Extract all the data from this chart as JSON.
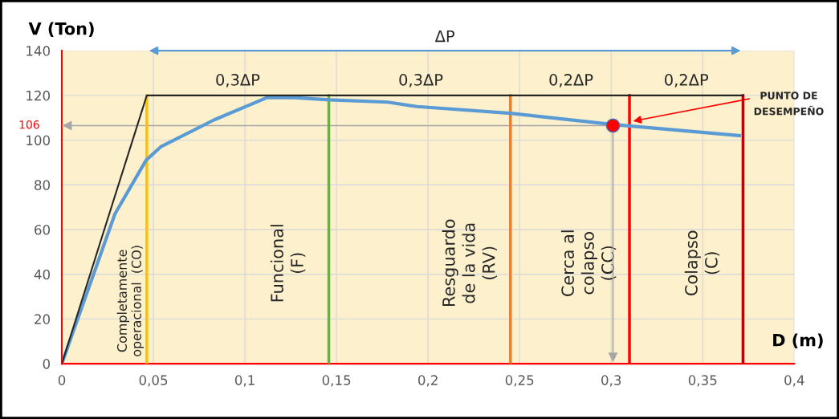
{
  "chart_data": {
    "type": "line",
    "xlabel": "D (m)",
    "ylabel": "V (Ton)",
    "xlim": [
      0,
      0.4
    ],
    "ylim": [
      0,
      140
    ],
    "xticks": [
      0,
      {
        "value": 0.05,
        "label": "0,05"
      },
      {
        "value": 0.1,
        "label": "0,1"
      },
      {
        "value": 0.15,
        "label": "0,15"
      },
      {
        "value": 0.2,
        "label": "0,2"
      },
      {
        "value": 0.25,
        "label": "0,25"
      },
      {
        "value": 0.3,
        "label": "0,3"
      },
      {
        "value": 0.35,
        "label": "0,35"
      },
      {
        "value": 0.4,
        "label": "0,4"
      }
    ],
    "yticks": [
      0,
      20,
      40,
      60,
      80,
      100,
      120,
      140
    ],
    "grid": true,
    "marker": "none",
    "line_style": "solid",
    "series": [
      {
        "color": "#5b9bd5",
        "x": [
          0,
          0.029,
          0.046,
          0.054,
          0.083,
          0.112,
          0.127,
          0.146,
          0.178,
          0.194,
          0.245,
          0.301,
          0.37
        ],
        "values": [
          0,
          67,
          91,
          97,
          109,
          119,
          119,
          118,
          117,
          115,
          112,
          107,
          102
        ]
      },
      {
        "color": "#262626",
        "x": [
          0,
          0.0464,
          0.372
        ],
        "values": [
          0,
          120,
          120
        ]
      },
      {
        "type": "scatter",
        "marker": "circle",
        "color": "#ff0000",
        "x": [
          0.301
        ],
        "values": [
          106.5
        ]
      }
    ],
    "ref_lines": [
      {
        "axis": "x",
        "value": 0.0464,
        "label": "Completamente\noperacional  (CO)",
        "color": "#ffc000"
      },
      {
        "axis": "x",
        "value": 0.1458,
        "label": "Funcional\n(F)",
        "color": "#70ad47"
      },
      {
        "axis": "x",
        "value": 0.245,
        "label": "Resguardo\nde la vida\n(RV)",
        "color": "#ed7d31"
      },
      {
        "axis": "x",
        "value": 0.31,
        "label": "Cerca al\ncolapso\n(CC)",
        "color": "#ff0000"
      },
      {
        "axis": "x",
        "value": 0.372,
        "label": "Colapso\n(C)",
        "color": "#c00000"
      },
      {
        "axis": "y",
        "value": 106.5,
        "label": "106",
        "color": "#a6a6a6"
      },
      {
        "axis": "x",
        "value": 0.301,
        "label": null,
        "color": "#a6a6a6"
      }
    ],
    "annotations": [
      "ΔP",
      {
        "text": "0,3ΔP",
        "x": 0.096,
        "y": 120
      },
      {
        "text": "0,3ΔP",
        "x": 0.196,
        "y": 120
      },
      {
        "text": "0,2ΔP",
        "x": 0.278,
        "y": 120
      },
      {
        "text": "0,2ΔP",
        "x": 0.341,
        "y": 120
      },
      {
        "text": "PUNTO DE\nDESEMPEÑO",
        "x": 0.312,
        "y": 108.5
      }
    ]
  }
}
